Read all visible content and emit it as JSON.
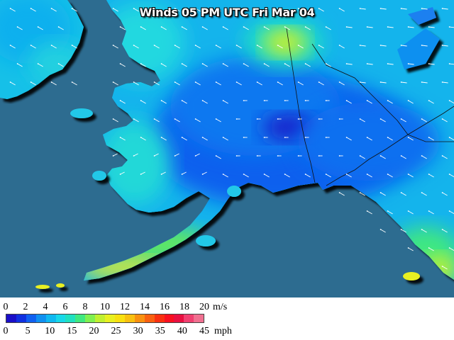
{
  "title": "Winds 05 PM UTC Fri Mar 04",
  "legend": {
    "ms_unit": "m/s",
    "mph_unit": "mph",
    "ms_ticks": [
      "0",
      "2",
      "4",
      "6",
      "8",
      "10",
      "12",
      "14",
      "16",
      "18",
      "20"
    ],
    "mph_ticks": [
      "0",
      "5",
      "10",
      "15",
      "20",
      "25",
      "30",
      "35",
      "40",
      "45"
    ],
    "colors": [
      "#1a0fc8",
      "#1030e0",
      "#1060f0",
      "#1090f0",
      "#10b8f0",
      "#18d8e8",
      "#20e0c0",
      "#40e880",
      "#80f050",
      "#c0f030",
      "#e8f020",
      "#f8e010",
      "#f8c010",
      "#f89010",
      "#f86010",
      "#f83010",
      "#f81020",
      "#e81040",
      "#f04070",
      "#f07090"
    ]
  },
  "map": {
    "ocean_color": "#2d6c90",
    "wind_field": [
      {
        "lon": 210,
        "lat": 71,
        "speed_mph": 22
      },
      {
        "lon": 205,
        "lat": 66,
        "speed_mph": 8
      },
      {
        "lon": 195,
        "lat": 64,
        "speed_mph": 12
      },
      {
        "lon": 200,
        "lat": 58,
        "speed_mph": 20
      },
      {
        "lon": 225,
        "lat": 57,
        "speed_mph": 24
      }
    ]
  }
}
